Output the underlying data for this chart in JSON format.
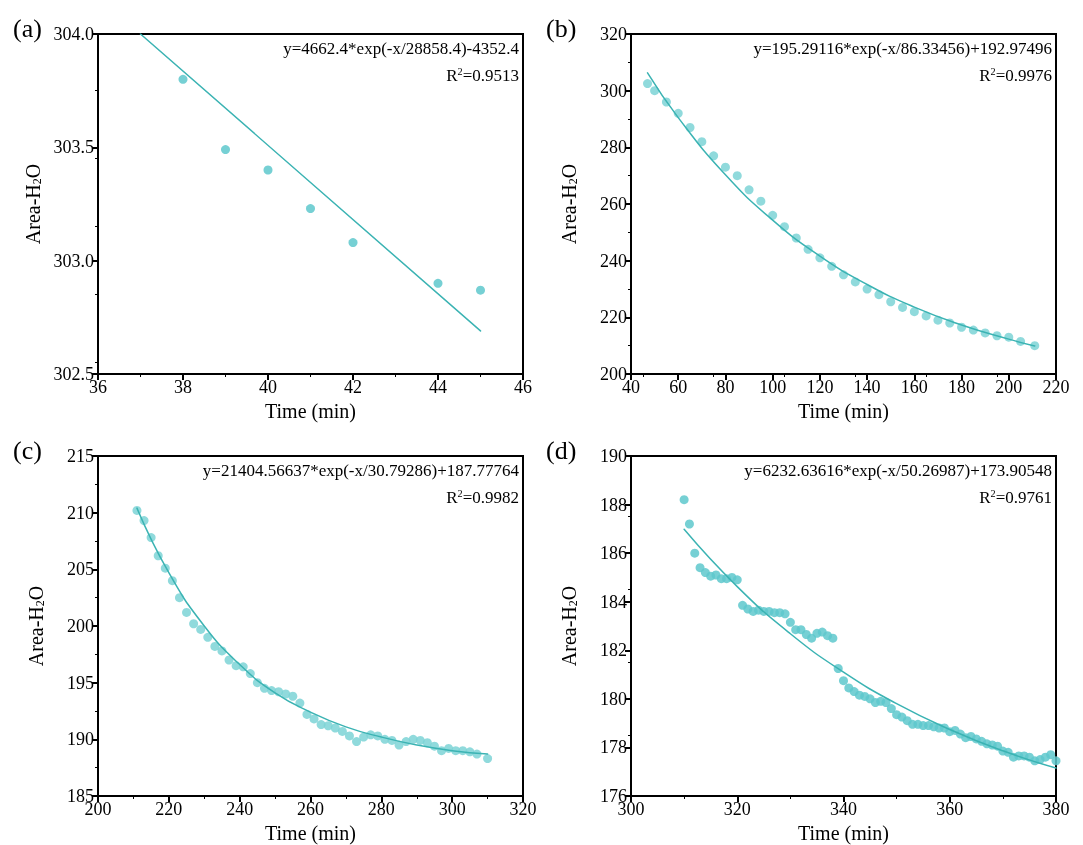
{
  "chart_data": [
    {
      "type": "scatter",
      "title": "(a)",
      "xlabel": "Time (min)",
      "ylabel": "Area-H$_{2}$O",
      "annotations": [
        "y=4662.4*exp(-x/28858.4)-4352.4",
        "R$^{2}$=0.9513"
      ],
      "xlim": [
        36,
        46
      ],
      "xticks": [
        36,
        38,
        40,
        42,
        44,
        46
      ],
      "ylim": [
        302.5,
        304.0
      ],
      "yticks": [
        302.5,
        {
          "value": 303,
          "label": "303.0"
        },
        303.5,
        {
          "value": 304,
          "label": "304.0"
        }
      ],
      "series": [
        {
          "marker": "circle",
          "color": "#5ec8cc",
          "x": [
            38,
            39,
            40,
            41,
            42,
            44,
            45
          ],
          "values": [
            303.8,
            303.49,
            303.4,
            303.23,
            303.08,
            302.9,
            302.87
          ]
        },
        {
          "type": "line",
          "marker": "none",
          "color": "#3bb3b3",
          "x": [
            37,
            45
          ],
          "values": [
            304.0,
            302.69
          ]
        }
      ]
    },
    {
      "type": "scatter",
      "title": "(b)",
      "xlabel": "Time (min)",
      "ylabel": "Area-H$_{2}$O",
      "annotations": [
        "y=195.29116*exp(-x/86.33456)+192.97496",
        "R$^{2}$=0.9976"
      ],
      "xlim": [
        40,
        220
      ],
      "xticks": [
        40,
        60,
        80,
        100,
        120,
        140,
        160,
        180,
        200,
        220
      ],
      "ylim": [
        200,
        320
      ],
      "yticks": [
        200,
        220,
        240,
        260,
        280,
        300,
        320
      ],
      "series": [
        {
          "marker": "circle",
          "color": "#7dd3d6",
          "x": [
            47,
            50,
            55,
            60,
            65,
            70,
            75,
            80,
            85,
            90,
            95,
            100,
            105,
            110,
            115,
            120,
            125,
            130,
            135,
            140,
            145,
            150,
            155,
            160,
            165,
            170,
            175,
            180,
            185,
            190,
            195,
            200,
            205,
            211
          ],
          "values": [
            302.5,
            300,
            296,
            292,
            287,
            282,
            277,
            273,
            270,
            265,
            261,
            256,
            252,
            248,
            244,
            241,
            238,
            235,
            232.5,
            230,
            228,
            225.5,
            223.5,
            222,
            220.5,
            219,
            218,
            216.5,
            215.5,
            214.5,
            213.5,
            213,
            211.5,
            210
          ]
        },
        {
          "type": "line",
          "marker": "none",
          "color": "#3bb3b3",
          "x": [
            47,
            60,
            80,
            100,
            120,
            140,
            160,
            180,
            200,
            211
          ],
          "values": [
            306.3,
            290.5,
            270.3,
            254.3,
            241.6,
            231.6,
            223.6,
            217.3,
            212.3,
            209.9
          ]
        }
      ]
    },
    {
      "type": "scatter",
      "title": "(c)",
      "xlabel": "Time (min)",
      "ylabel": "Area-H$_{2}$O",
      "annotations": [
        "y=21404.56637*exp(-x/30.79286)+187.77764",
        "R$^{2}$=0.9982"
      ],
      "xlim": [
        200,
        320
      ],
      "xticks": [
        200,
        220,
        240,
        260,
        280,
        300,
        320
      ],
      "ylim": [
        185,
        215
      ],
      "yticks": [
        185,
        190,
        195,
        200,
        205,
        210,
        215
      ],
      "series": [
        {
          "marker": "circle",
          "color": "#7dd3d6",
          "x": [
            211,
            213,
            215,
            217,
            219,
            221,
            223,
            225,
            227,
            229,
            231,
            233,
            235,
            237,
            239,
            241,
            243,
            245,
            247,
            249,
            251,
            253,
            255,
            257,
            259,
            261,
            263,
            265,
            267,
            269,
            271,
            273,
            275,
            277,
            279,
            281,
            283,
            285,
            287,
            289,
            291,
            293,
            295,
            297,
            299,
            301,
            303,
            305,
            307,
            310
          ],
          "values": [
            210.2,
            209.3,
            207.8,
            206.2,
            205.1,
            204.0,
            202.5,
            201.2,
            200.2,
            199.7,
            199.0,
            198.2,
            197.8,
            197.0,
            196.5,
            196.4,
            195.8,
            195.0,
            194.5,
            194.3,
            194.2,
            194.0,
            193.8,
            193.2,
            192.2,
            191.8,
            191.3,
            191.2,
            191.0,
            190.7,
            190.3,
            189.8,
            190.2,
            190.4,
            190.3,
            190.0,
            189.9,
            189.5,
            189.8,
            190.0,
            189.9,
            189.7,
            189.4,
            189.0,
            189.2,
            189.0,
            189.0,
            188.9,
            188.7,
            188.3
          ]
        },
        {
          "type": "line",
          "marker": "none",
          "color": "#3bb3b3",
          "x": [
            211,
            220,
            230,
            240,
            250,
            260,
            270,
            280,
            290,
            300,
            310
          ],
          "values": [
            210.4,
            204.7,
            200.0,
            196.6,
            194.1,
            192.4,
            191.1,
            190.2,
            189.5,
            189.0,
            188.7
          ]
        }
      ]
    },
    {
      "type": "scatter",
      "title": "(d)",
      "xlabel": "Time (min)",
      "ylabel": "Area-H$_{2}$O",
      "annotations": [
        "y=6232.63616*exp(-x/50.26987)+173.90548",
        "R$^{2}$=0.9761"
      ],
      "xlim": [
        300,
        380
      ],
      "xticks": [
        300,
        320,
        340,
        360,
        380
      ],
      "ylim": [
        176,
        190
      ],
      "yticks": [
        176,
        178,
        180,
        182,
        184,
        186,
        188,
        190
      ],
      "series": [
        {
          "marker": "circle",
          "color": "#5ec8cc",
          "x": [
            310,
            311,
            312,
            313,
            314,
            315,
            316,
            317,
            318,
            319,
            320,
            321,
            322,
            323,
            324,
            325,
            326,
            327,
            328,
            329,
            330,
            331,
            332,
            333,
            334,
            335,
            336,
            337,
            338,
            339,
            340,
            341,
            342,
            343,
            344,
            345,
            346,
            347,
            348,
            349,
            350,
            351,
            352,
            353,
            354,
            355,
            356,
            357,
            358,
            359,
            360,
            361,
            362,
            363,
            364,
            365,
            366,
            367,
            368,
            369,
            370,
            371,
            372,
            373,
            374,
            375,
            376,
            377,
            378,
            379,
            380
          ],
          "values": [
            188.2,
            187.2,
            186.0,
            185.4,
            185.2,
            185.05,
            185.1,
            184.95,
            184.95,
            185.0,
            184.9,
            183.85,
            183.7,
            183.6,
            183.65,
            183.6,
            183.6,
            183.55,
            183.55,
            183.5,
            183.15,
            182.85,
            182.85,
            182.65,
            182.5,
            182.7,
            182.75,
            182.6,
            182.5,
            181.25,
            180.75,
            180.45,
            180.3,
            180.15,
            180.1,
            180.0,
            179.85,
            179.9,
            179.85,
            179.6,
            179.35,
            179.25,
            179.1,
            178.95,
            178.95,
            178.9,
            178.9,
            178.85,
            178.8,
            178.8,
            178.65,
            178.7,
            178.55,
            178.4,
            178.45,
            178.35,
            178.25,
            178.15,
            178.1,
            178.05,
            177.85,
            177.8,
            177.6,
            177.65,
            177.65,
            177.6,
            177.45,
            177.5,
            177.6,
            177.7,
            177.45
          ]
        },
        {
          "type": "line",
          "marker": "none",
          "color": "#3bb3b3",
          "x": [
            310,
            320,
            330,
            340,
            350,
            360,
            370,
            380
          ],
          "values": [
            186.98,
            184.62,
            182.68,
            181.1,
            179.8,
            178.74,
            177.86,
            177.15
          ]
        }
      ]
    }
  ]
}
